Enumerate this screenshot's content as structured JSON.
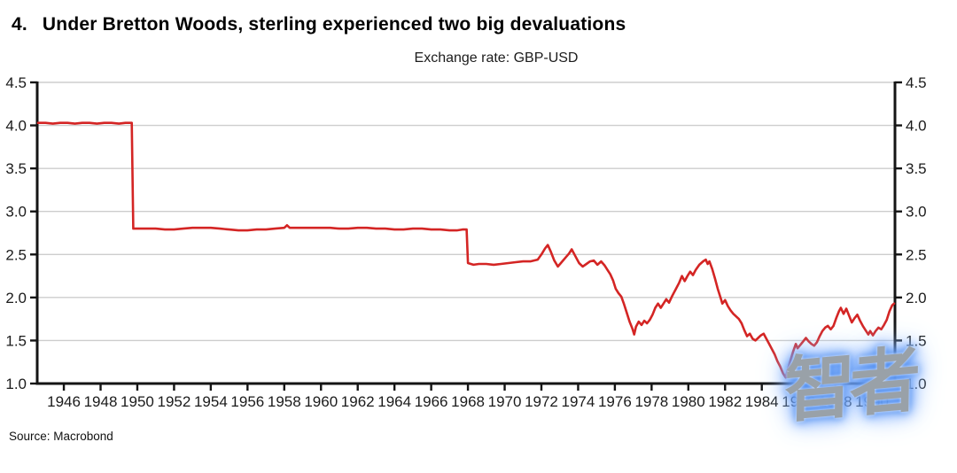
{
  "header": {
    "number": "4.",
    "title": "Under Bretton Woods, sterling experienced two big devaluations"
  },
  "source": {
    "label": "Source: Macrobond"
  },
  "watermark": {
    "text": "智者"
  },
  "chart_data": {
    "type": "line",
    "title": "Exchange rate: GBP-USD",
    "xlabel": "",
    "ylabel": "",
    "x_range": [
      1944.55,
      1991.25
    ],
    "y_range": [
      1.0,
      4.5
    ],
    "x_ticks": [
      1946,
      1948,
      1950,
      1952,
      1954,
      1956,
      1958,
      1960,
      1962,
      1964,
      1966,
      1968,
      1970,
      1972,
      1974,
      1976,
      1978,
      1980,
      1982,
      1984,
      1986,
      1988,
      1990
    ],
    "y_ticks": [
      1.0,
      1.5,
      2.0,
      2.5,
      3.0,
      3.5,
      4.0,
      4.5
    ],
    "grid": "horizontal",
    "legend": "none",
    "colors": {
      "line": "#d42524",
      "grid": "#cdcdcd",
      "axis": "#141414",
      "tick_label": "#1b1b1b"
    },
    "annotations": [
      "1949 devaluation: 4.03 to 2.80",
      "1967 devaluation: 2.80 to 2.40"
    ],
    "series": [
      {
        "name": "GBP-USD",
        "points": [
          [
            1944.6,
            4.03
          ],
          [
            1945,
            4.03
          ],
          [
            1945.4,
            4.02
          ],
          [
            1945.8,
            4.03
          ],
          [
            1946.2,
            4.03
          ],
          [
            1946.6,
            4.02
          ],
          [
            1947,
            4.03
          ],
          [
            1947.4,
            4.03
          ],
          [
            1947.8,
            4.02
          ],
          [
            1948.2,
            4.03
          ],
          [
            1948.6,
            4.03
          ],
          [
            1949,
            4.02
          ],
          [
            1949.35,
            4.03
          ],
          [
            1949.7,
            4.03
          ],
          [
            1949.78,
            2.8
          ],
          [
            1950,
            2.8
          ],
          [
            1950.5,
            2.8
          ],
          [
            1951,
            2.8
          ],
          [
            1951.5,
            2.79
          ],
          [
            1952,
            2.79
          ],
          [
            1952.5,
            2.8
          ],
          [
            1953,
            2.81
          ],
          [
            1953.5,
            2.81
          ],
          [
            1954,
            2.81
          ],
          [
            1954.5,
            2.8
          ],
          [
            1955,
            2.79
          ],
          [
            1955.5,
            2.78
          ],
          [
            1956,
            2.78
          ],
          [
            1956.5,
            2.79
          ],
          [
            1957,
            2.79
          ],
          [
            1957.5,
            2.8
          ],
          [
            1958,
            2.81
          ],
          [
            1958.15,
            2.84
          ],
          [
            1958.3,
            2.81
          ],
          [
            1958.7,
            2.81
          ],
          [
            1959,
            2.81
          ],
          [
            1959.5,
            2.81
          ],
          [
            1960,
            2.81
          ],
          [
            1960.5,
            2.81
          ],
          [
            1961,
            2.8
          ],
          [
            1961.5,
            2.8
          ],
          [
            1962,
            2.81
          ],
          [
            1962.5,
            2.81
          ],
          [
            1963,
            2.8
          ],
          [
            1963.5,
            2.8
          ],
          [
            1964,
            2.79
          ],
          [
            1964.5,
            2.79
          ],
          [
            1965,
            2.8
          ],
          [
            1965.5,
            2.8
          ],
          [
            1966,
            2.79
          ],
          [
            1966.5,
            2.79
          ],
          [
            1967,
            2.78
          ],
          [
            1967.4,
            2.78
          ],
          [
            1967.7,
            2.79
          ],
          [
            1967.93,
            2.79
          ],
          [
            1968,
            2.4
          ],
          [
            1968.3,
            2.38
          ],
          [
            1968.6,
            2.39
          ],
          [
            1969,
            2.39
          ],
          [
            1969.4,
            2.38
          ],
          [
            1969.8,
            2.39
          ],
          [
            1970.2,
            2.4
          ],
          [
            1970.6,
            2.41
          ],
          [
            1971,
            2.42
          ],
          [
            1971.4,
            2.42
          ],
          [
            1971.8,
            2.44
          ],
          [
            1972,
            2.5
          ],
          [
            1972.2,
            2.57
          ],
          [
            1972.35,
            2.61
          ],
          [
            1972.5,
            2.54
          ],
          [
            1972.7,
            2.43
          ],
          [
            1972.9,
            2.36
          ],
          [
            1973.1,
            2.41
          ],
          [
            1973.3,
            2.46
          ],
          [
            1973.5,
            2.51
          ],
          [
            1973.65,
            2.56
          ],
          [
            1973.85,
            2.48
          ],
          [
            1974.05,
            2.4
          ],
          [
            1974.25,
            2.36
          ],
          [
            1974.45,
            2.39
          ],
          [
            1974.65,
            2.42
          ],
          [
            1974.85,
            2.43
          ],
          [
            1975.05,
            2.38
          ],
          [
            1975.25,
            2.42
          ],
          [
            1975.45,
            2.37
          ],
          [
            1975.6,
            2.32
          ],
          [
            1975.75,
            2.27
          ],
          [
            1975.9,
            2.2
          ],
          [
            1976.05,
            2.1
          ],
          [
            1976.2,
            2.05
          ],
          [
            1976.35,
            2.01
          ],
          [
            1976.5,
            1.92
          ],
          [
            1976.65,
            1.82
          ],
          [
            1976.8,
            1.72
          ],
          [
            1976.95,
            1.64
          ],
          [
            1977.05,
            1.57
          ],
          [
            1977.15,
            1.66
          ],
          [
            1977.3,
            1.72
          ],
          [
            1977.45,
            1.68
          ],
          [
            1977.6,
            1.73
          ],
          [
            1977.75,
            1.7
          ],
          [
            1977.9,
            1.74
          ],
          [
            1978.05,
            1.8
          ],
          [
            1978.2,
            1.88
          ],
          [
            1978.35,
            1.93
          ],
          [
            1978.5,
            1.88
          ],
          [
            1978.65,
            1.93
          ],
          [
            1978.8,
            1.98
          ],
          [
            1978.95,
            1.94
          ],
          [
            1979.1,
            2.01
          ],
          [
            1979.3,
            2.09
          ],
          [
            1979.5,
            2.17
          ],
          [
            1979.65,
            2.25
          ],
          [
            1979.8,
            2.19
          ],
          [
            1979.95,
            2.25
          ],
          [
            1980.1,
            2.3
          ],
          [
            1980.25,
            2.26
          ],
          [
            1980.4,
            2.32
          ],
          [
            1980.6,
            2.38
          ],
          [
            1980.8,
            2.42
          ],
          [
            1980.95,
            2.44
          ],
          [
            1981.05,
            2.39
          ],
          [
            1981.15,
            2.42
          ],
          [
            1981.3,
            2.33
          ],
          [
            1981.45,
            2.22
          ],
          [
            1981.6,
            2.1
          ],
          [
            1981.75,
            2
          ],
          [
            1981.85,
            1.93
          ],
          [
            1982,
            1.97
          ],
          [
            1982.15,
            1.9
          ],
          [
            1982.3,
            1.85
          ],
          [
            1982.45,
            1.81
          ],
          [
            1982.6,
            1.78
          ],
          [
            1982.75,
            1.75
          ],
          [
            1982.9,
            1.7
          ],
          [
            1983.05,
            1.62
          ],
          [
            1983.2,
            1.55
          ],
          [
            1983.35,
            1.58
          ],
          [
            1983.5,
            1.52
          ],
          [
            1983.65,
            1.5
          ],
          [
            1983.8,
            1.53
          ],
          [
            1983.95,
            1.56
          ],
          [
            1984.1,
            1.58
          ],
          [
            1984.25,
            1.52
          ],
          [
            1984.4,
            1.46
          ],
          [
            1984.55,
            1.4
          ],
          [
            1984.7,
            1.34
          ],
          [
            1984.85,
            1.26
          ],
          [
            1985,
            1.2
          ],
          [
            1985.15,
            1.12
          ],
          [
            1985.3,
            1.07
          ],
          [
            1985.4,
            1.15
          ],
          [
            1985.55,
            1.26
          ],
          [
            1985.7,
            1.37
          ],
          [
            1985.85,
            1.46
          ],
          [
            1985.95,
            1.41
          ],
          [
            1986.1,
            1.45
          ],
          [
            1986.25,
            1.49
          ],
          [
            1986.4,
            1.53
          ],
          [
            1986.55,
            1.49
          ],
          [
            1986.7,
            1.46
          ],
          [
            1986.85,
            1.44
          ],
          [
            1987,
            1.48
          ],
          [
            1987.15,
            1.55
          ],
          [
            1987.3,
            1.61
          ],
          [
            1987.45,
            1.65
          ],
          [
            1987.6,
            1.67
          ],
          [
            1987.75,
            1.63
          ],
          [
            1987.9,
            1.67
          ],
          [
            1988.05,
            1.76
          ],
          [
            1988.2,
            1.84
          ],
          [
            1988.3,
            1.88
          ],
          [
            1988.45,
            1.81
          ],
          [
            1988.6,
            1.87
          ],
          [
            1988.75,
            1.79
          ],
          [
            1988.9,
            1.71
          ],
          [
            1989.05,
            1.76
          ],
          [
            1989.2,
            1.8
          ],
          [
            1989.35,
            1.73
          ],
          [
            1989.5,
            1.67
          ],
          [
            1989.65,
            1.62
          ],
          [
            1989.8,
            1.57
          ],
          [
            1989.9,
            1.61
          ],
          [
            1990.05,
            1.56
          ],
          [
            1990.2,
            1.61
          ],
          [
            1990.35,
            1.65
          ],
          [
            1990.5,
            1.63
          ],
          [
            1990.65,
            1.68
          ],
          [
            1990.8,
            1.74
          ],
          [
            1990.95,
            1.84
          ],
          [
            1991.1,
            1.91
          ],
          [
            1991.2,
            1.93
          ]
        ]
      }
    ]
  }
}
